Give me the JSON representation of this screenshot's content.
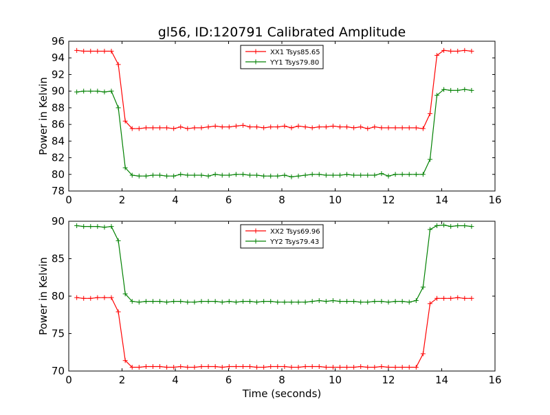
{
  "title": "gl56, ID:120791 Calibrated Amplitude",
  "xlabel": "Time (seconds)",
  "chart_data": [
    {
      "type": "line",
      "xlim": [
        0,
        16
      ],
      "ylim": [
        78,
        96
      ],
      "xticks": [
        0,
        2,
        4,
        6,
        8,
        10,
        12,
        14,
        16
      ],
      "yticks": [
        78,
        80,
        82,
        84,
        86,
        88,
        90,
        92,
        94,
        96
      ],
      "ylabel": "Power in Kelvin",
      "legend_position": "top-center",
      "x": [
        0.3,
        0.56,
        0.82,
        1.08,
        1.34,
        1.6,
        1.86,
        2.12,
        2.38,
        2.64,
        2.9,
        3.16,
        3.42,
        3.68,
        3.94,
        4.2,
        4.46,
        4.72,
        4.98,
        5.24,
        5.5,
        5.76,
        6.02,
        6.28,
        6.54,
        6.8,
        7.06,
        7.32,
        7.58,
        7.84,
        8.1,
        8.36,
        8.62,
        8.88,
        9.14,
        9.4,
        9.66,
        9.92,
        10.18,
        10.44,
        10.7,
        10.96,
        11.22,
        11.48,
        11.74,
        12.0,
        12.26,
        12.52,
        12.78,
        13.04,
        13.3,
        13.56,
        13.82,
        14.08,
        14.34,
        14.6,
        14.86,
        15.12
      ],
      "series": [
        {
          "name": "XX1 Tsys85.65",
          "color": "#ff0000",
          "values": [
            94.9,
            94.8,
            94.8,
            94.8,
            94.8,
            94.8,
            93.2,
            86.4,
            85.5,
            85.5,
            85.6,
            85.6,
            85.6,
            85.6,
            85.5,
            85.7,
            85.5,
            85.6,
            85.6,
            85.7,
            85.8,
            85.7,
            85.7,
            85.8,
            85.9,
            85.7,
            85.7,
            85.6,
            85.7,
            85.7,
            85.8,
            85.6,
            85.8,
            85.7,
            85.6,
            85.7,
            85.7,
            85.8,
            85.7,
            85.7,
            85.6,
            85.7,
            85.5,
            85.7,
            85.6,
            85.6,
            85.6,
            85.6,
            85.6,
            85.6,
            85.5,
            87.3,
            94.3,
            94.9,
            94.8,
            94.8,
            94.9,
            94.8
          ]
        },
        {
          "name": "YY1 Tsys79.80",
          "color": "#008000",
          "values": [
            89.9,
            90.0,
            90.0,
            90.0,
            89.9,
            90.0,
            88.0,
            80.8,
            79.9,
            79.8,
            79.8,
            79.9,
            79.9,
            79.8,
            79.8,
            80.0,
            79.9,
            79.9,
            79.9,
            79.8,
            80.0,
            79.9,
            79.9,
            80.0,
            80.0,
            79.9,
            79.9,
            79.8,
            79.8,
            79.8,
            79.9,
            79.7,
            79.8,
            79.9,
            80.0,
            80.0,
            79.9,
            79.9,
            79.9,
            80.0,
            79.9,
            79.9,
            79.9,
            79.9,
            80.1,
            79.8,
            80.0,
            80.0,
            80.0,
            80.0,
            80.0,
            81.8,
            89.5,
            90.2,
            90.1,
            90.1,
            90.2,
            90.1
          ]
        }
      ]
    },
    {
      "type": "line",
      "xlim": [
        0,
        16
      ],
      "ylim": [
        70,
        90
      ],
      "xticks": [
        0,
        2,
        4,
        6,
        8,
        10,
        12,
        14,
        16
      ],
      "yticks": [
        70,
        75,
        80,
        85,
        90
      ],
      "ylabel": "Power in Kelvin",
      "xlabel": "Time (seconds)",
      "legend_position": "top-center",
      "x": [
        0.3,
        0.56,
        0.82,
        1.08,
        1.34,
        1.6,
        1.86,
        2.12,
        2.38,
        2.64,
        2.9,
        3.16,
        3.42,
        3.68,
        3.94,
        4.2,
        4.46,
        4.72,
        4.98,
        5.24,
        5.5,
        5.76,
        6.02,
        6.28,
        6.54,
        6.8,
        7.06,
        7.32,
        7.58,
        7.84,
        8.1,
        8.36,
        8.62,
        8.88,
        9.14,
        9.4,
        9.66,
        9.92,
        10.18,
        10.44,
        10.7,
        10.96,
        11.22,
        11.48,
        11.74,
        12.0,
        12.26,
        12.52,
        12.78,
        13.04,
        13.3,
        13.56,
        13.82,
        14.08,
        14.34,
        14.6,
        14.86,
        15.12
      ],
      "series": [
        {
          "name": "XX2 Tsys69.96",
          "color": "#ff0000",
          "values": [
            79.8,
            79.7,
            79.7,
            79.8,
            79.8,
            79.8,
            77.9,
            71.4,
            70.5,
            70.5,
            70.6,
            70.6,
            70.6,
            70.5,
            70.5,
            70.6,
            70.5,
            70.5,
            70.6,
            70.6,
            70.6,
            70.5,
            70.6,
            70.6,
            70.6,
            70.6,
            70.5,
            70.5,
            70.6,
            70.6,
            70.6,
            70.5,
            70.5,
            70.6,
            70.6,
            70.6,
            70.5,
            70.5,
            70.5,
            70.5,
            70.5,
            70.6,
            70.5,
            70.5,
            70.6,
            70.5,
            70.5,
            70.5,
            70.5,
            70.5,
            72.3,
            79.0,
            79.7,
            79.7,
            79.7,
            79.8,
            79.7,
            79.7
          ]
        },
        {
          "name": "YY2 Tsys79.43",
          "color": "#008000",
          "values": [
            89.4,
            89.3,
            89.3,
            89.3,
            89.2,
            89.3,
            87.4,
            80.3,
            79.3,
            79.2,
            79.3,
            79.3,
            79.3,
            79.2,
            79.3,
            79.3,
            79.2,
            79.2,
            79.3,
            79.3,
            79.3,
            79.2,
            79.3,
            79.2,
            79.3,
            79.3,
            79.2,
            79.3,
            79.3,
            79.2,
            79.2,
            79.2,
            79.2,
            79.2,
            79.3,
            79.4,
            79.3,
            79.4,
            79.3,
            79.3,
            79.3,
            79.2,
            79.2,
            79.3,
            79.3,
            79.2,
            79.3,
            79.3,
            79.2,
            79.4,
            81.2,
            88.9,
            89.4,
            89.5,
            89.3,
            89.4,
            89.4,
            89.3
          ]
        }
      ]
    }
  ]
}
